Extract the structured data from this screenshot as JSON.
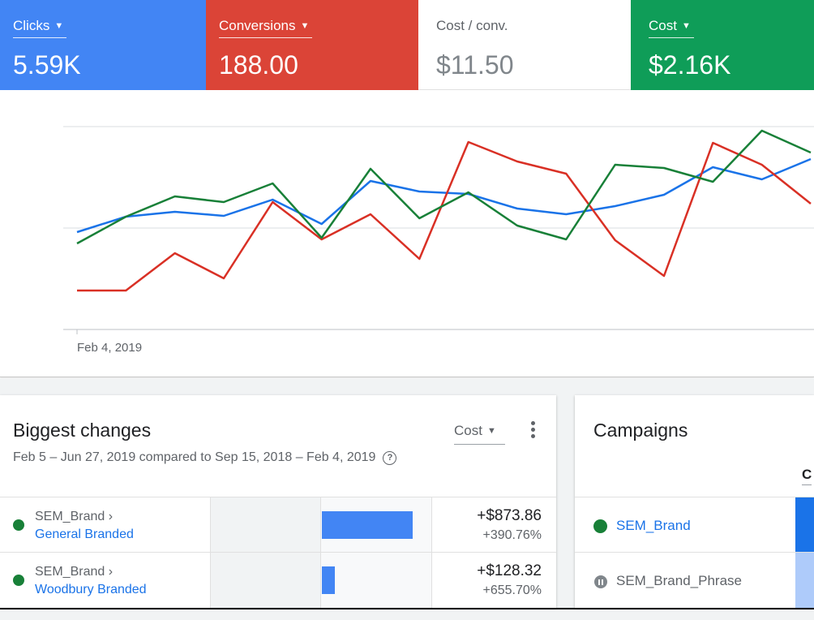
{
  "metrics": [
    {
      "label": "Clicks",
      "value": "5.59K",
      "color": "#4285f4",
      "dropdown": true
    },
    {
      "label": "Conversions",
      "value": "188.00",
      "color": "#db4437",
      "dropdown": true
    },
    {
      "label": "Cost / conv.",
      "value": "$11.50",
      "color": "#ffffff",
      "dropdown": false
    },
    {
      "label": "Cost",
      "value": "$2.16K",
      "color": "#0f9d58",
      "dropdown": true
    }
  ],
  "chart_data": {
    "type": "line",
    "x_tick_label": "Feb 4, 2019",
    "grid": true,
    "series": [
      {
        "metric": "Clicks",
        "color": "#1a73e8",
        "values": [
          286,
          267,
          261,
          266,
          246,
          276,
          223,
          236,
          239,
          257,
          264,
          254,
          240,
          206,
          221,
          196
        ]
      },
      {
        "metric": "Conversions",
        "color": "#d93025",
        "values": [
          358,
          358,
          312,
          343,
          249,
          295,
          264,
          319,
          175,
          199,
          214,
          296,
          340,
          176,
          203,
          251
        ]
      },
      {
        "metric": "Cost",
        "color": "#188038",
        "values": [
          300,
          267,
          242,
          249,
          226,
          293,
          208,
          269,
          237,
          278,
          295,
          203,
          207,
          224,
          161,
          188
        ]
      }
    ]
  },
  "changes_card": {
    "title": "Biggest changes",
    "subtitle": "Feb 5 – Jun 27, 2019 compared to Sep 15, 2018 – Feb 4, 2019",
    "help_icon": "help-circle-icon",
    "metric_select": "Cost",
    "more_icon": "more-vert-icon",
    "rows": [
      {
        "parent": "SEM_Brand ›",
        "name": "General Branded",
        "amount": "+$873.86",
        "percent": "+390.76%",
        "change_value": 873.86,
        "status_color": "#188038"
      },
      {
        "parent": "SEM_Brand ›",
        "name": "Woodbury Branded",
        "amount": "+$128.32",
        "percent": "+655.70%",
        "change_value": 128.32,
        "status_color": "#188038"
      }
    ]
  },
  "campaigns_card": {
    "title": "Campaigns",
    "column_header": "C",
    "rows": [
      {
        "name": "SEM_Brand",
        "status": "enabled",
        "bar_color": "#1a73e8"
      },
      {
        "name": "SEM_Brand_Phrase",
        "status": "paused",
        "bar_color": "#aecbfa"
      }
    ]
  }
}
